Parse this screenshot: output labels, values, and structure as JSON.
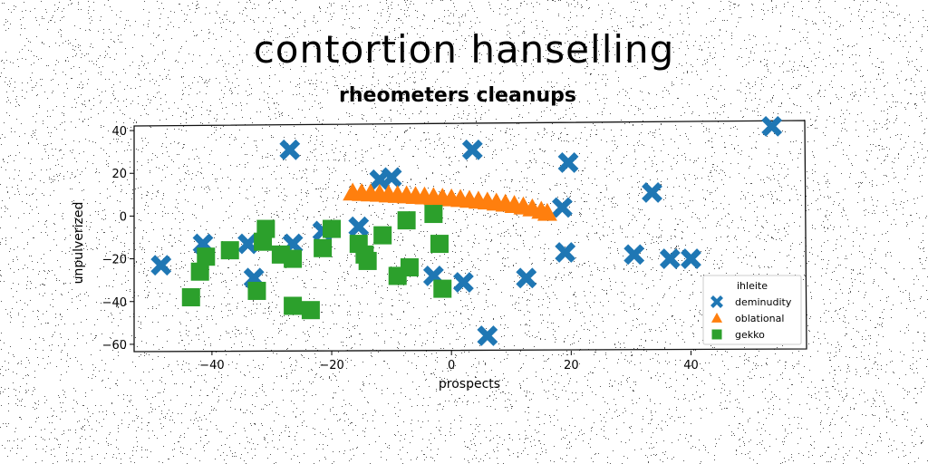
{
  "header": {
    "suptitle": "contortion hanselling",
    "title": "rheometers cleanups"
  },
  "chart_data": {
    "type": "scatter",
    "title": "rheometers cleanups",
    "suptitle": "contortion hanselling",
    "xlabel": "prospects",
    "ylabel": "unpulverized",
    "xlim": [
      -53,
      59
    ],
    "ylim": [
      -63,
      43
    ],
    "xticks": [
      -40,
      -20,
      0,
      20,
      40
    ],
    "yticks": [
      40,
      20,
      0,
      -20,
      -40,
      -60
    ],
    "xtick_labels": [
      "−40",
      "−20",
      "0",
      "20",
      "40"
    ],
    "ytick_labels": [
      "40",
      "20",
      "0",
      "−20",
      "−40",
      "−60"
    ],
    "grid": false,
    "legend": {
      "title": "ihleite",
      "position": "lower-right"
    },
    "series": [
      {
        "name": "deminudity",
        "marker": "x",
        "color": "#1f77b4",
        "points": [
          [
            -48.5,
            -23
          ],
          [
            -41.5,
            -13
          ],
          [
            -34,
            -13
          ],
          [
            -33,
            -29
          ],
          [
            -27,
            31
          ],
          [
            -26.5,
            -13
          ],
          [
            -21.5,
            -7
          ],
          [
            -15.5,
            -5
          ],
          [
            -12,
            17
          ],
          [
            -10,
            18
          ],
          [
            -3,
            -28
          ],
          [
            2,
            -31
          ],
          [
            3.5,
            31
          ],
          [
            6,
            -56
          ],
          [
            12.5,
            -29
          ],
          [
            18.5,
            4
          ],
          [
            19,
            -17
          ],
          [
            19.5,
            25
          ],
          [
            30.5,
            -18
          ],
          [
            33.5,
            11
          ],
          [
            36.5,
            -20
          ],
          [
            40,
            -20
          ],
          [
            53.5,
            42
          ]
        ]
      },
      {
        "name": "oblational",
        "marker": "triangle",
        "color": "#ff7f0e",
        "points": [
          [
            -16.5,
            11
          ],
          [
            -15,
            10.8
          ],
          [
            -13.5,
            10.6
          ],
          [
            -12,
            10.4
          ],
          [
            -10.5,
            10.1
          ],
          [
            -9,
            9.9
          ],
          [
            -7.5,
            9.7
          ],
          [
            -6,
            9.4
          ],
          [
            -4.5,
            9.2
          ],
          [
            -3,
            8.9
          ],
          [
            -1.5,
            8.6
          ],
          [
            0,
            8.3
          ],
          [
            1.5,
            8
          ],
          [
            3,
            7.6
          ],
          [
            4.5,
            7.2
          ],
          [
            6,
            6.8
          ],
          [
            7.5,
            6.3
          ],
          [
            9,
            5.8
          ],
          [
            10.5,
            5.2
          ],
          [
            12,
            4.5
          ],
          [
            13.5,
            3.6
          ],
          [
            15,
            2.5
          ],
          [
            16,
            1.5
          ]
        ]
      },
      {
        "name": "gekko",
        "marker": "square",
        "color": "#2ca02c",
        "points": [
          [
            -43.5,
            -38
          ],
          [
            -42,
            -26
          ],
          [
            -41,
            -19
          ],
          [
            -37,
            -16
          ],
          [
            -32.5,
            -35
          ],
          [
            -31.5,
            -12
          ],
          [
            -31,
            -6
          ],
          [
            -28.5,
            -18
          ],
          [
            -26.5,
            -20
          ],
          [
            -26.5,
            -42
          ],
          [
            -23.5,
            -44
          ],
          [
            -21.5,
            -15
          ],
          [
            -20,
            -6
          ],
          [
            -15.5,
            -13
          ],
          [
            -14.5,
            -18
          ],
          [
            -14,
            -21
          ],
          [
            -11.5,
            -9
          ],
          [
            -9,
            -28
          ],
          [
            -7,
            -24
          ],
          [
            -7.5,
            -2
          ],
          [
            -3,
            1
          ],
          [
            -2,
            -13
          ],
          [
            -1.5,
            -34
          ]
        ]
      }
    ]
  }
}
